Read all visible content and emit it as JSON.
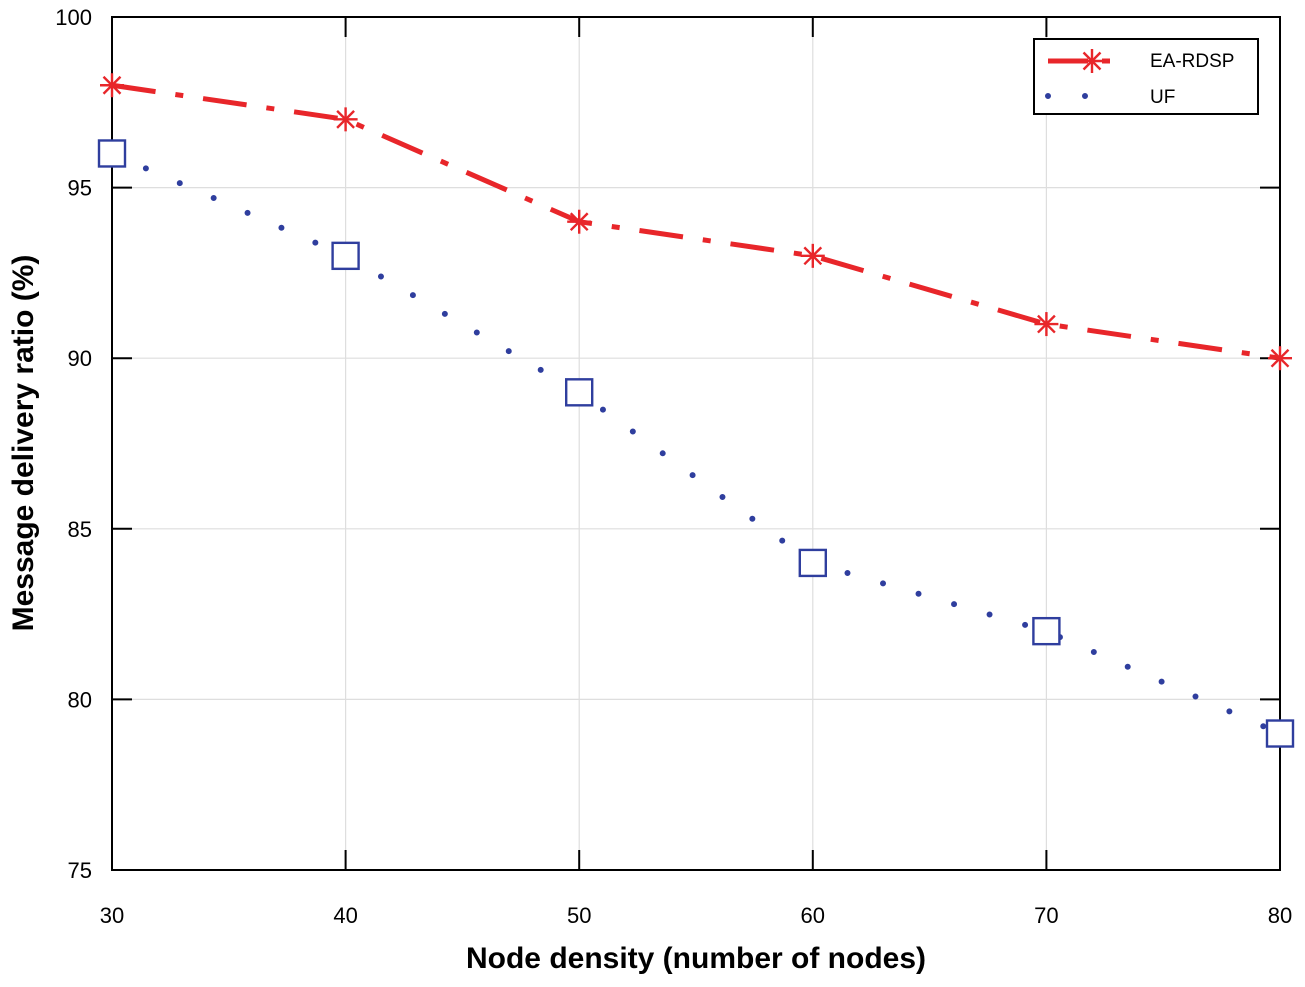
{
  "chart_data": {
    "type": "line",
    "title": "",
    "xlabel": "Node density (number of nodes)",
    "ylabel": "Message delivery ratio (%)",
    "x": [
      30,
      40,
      50,
      60,
      70,
      80
    ],
    "xlim": [
      30,
      80
    ],
    "ylim": [
      75,
      100
    ],
    "xticks": [
      30,
      40,
      50,
      60,
      70,
      80
    ],
    "yticks": [
      75,
      80,
      85,
      90,
      95,
      100
    ],
    "grid": true,
    "legend_position": "top-right",
    "series": [
      {
        "name": "EA-RDSP",
        "values": [
          98,
          97,
          94,
          93,
          91,
          90
        ],
        "color": "#e8262a",
        "line_style": "dash-dot",
        "marker": "asterisk"
      },
      {
        "name": "UF",
        "values": [
          96,
          93,
          89,
          84,
          82,
          79
        ],
        "color": "#2f3e9e",
        "line_style": "dotted",
        "marker": "square"
      }
    ]
  }
}
